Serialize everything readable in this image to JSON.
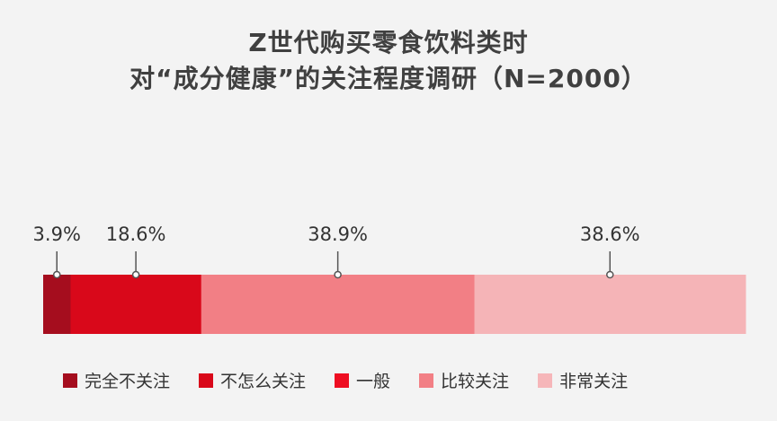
{
  "title_line1": "Z世代购买零食饮料类时",
  "title_line2": "对“成分健康”的关注程度调研（N=2000）",
  "chart_data": {
    "type": "bar",
    "orientation": "horizontal-stacked",
    "series": [
      {
        "name": "完全不关注",
        "value": 3.9,
        "label": "3.9%",
        "color": "#a50d1e"
      },
      {
        "name": "不怎么关注",
        "value": 18.6,
        "label": "18.6%",
        "color": "#d9081a"
      },
      {
        "name": "一般",
        "value": 38.9,
        "label": "38.9%",
        "color": "#f27f85"
      },
      {
        "name": "比较关注",
        "value": 38.6,
        "label": "38.6%",
        "color": "#f5b4b7"
      }
    ],
    "legend": [
      {
        "label": "完全不关注",
        "color": "#a50d1e"
      },
      {
        "label": "不怎么关注",
        "color": "#d9081a"
      },
      {
        "label": "一般",
        "color": "#ee0e22"
      },
      {
        "label": "比较关注",
        "color": "#f27f85"
      },
      {
        "label": "非常关注",
        "color": "#f6b6b9"
      }
    ],
    "legend_position": "bottom"
  }
}
